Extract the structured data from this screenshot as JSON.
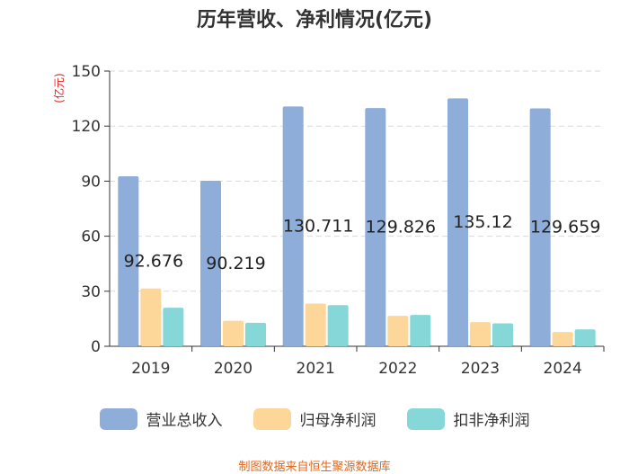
{
  "chart_data": {
    "type": "bar",
    "title": "历年营收、净利情况(亿元)",
    "ylabel": "(亿元)",
    "xlabel": "",
    "ylim": [
      0,
      150
    ],
    "yticks": [
      0,
      30,
      60,
      90,
      120,
      150
    ],
    "grid": true,
    "legend_position": "bottom",
    "categories": [
      "2019",
      "2020",
      "2021",
      "2022",
      "2023",
      "2024"
    ],
    "series": [
      {
        "name": "营业总收入",
        "color": "#8eadd9",
        "values": [
          92.676,
          90.219,
          130.711,
          129.826,
          135.12,
          129.659
        ],
        "labels": [
          "92.676",
          "90.219",
          "130.711",
          "129.826",
          "135.12",
          "129.659"
        ]
      },
      {
        "name": "归母净利润",
        "color": "#fdd79a",
        "values": [
          31.5,
          13.9,
          23.3,
          16.6,
          13.2,
          7.8
        ]
      },
      {
        "name": "扣非净利润",
        "color": "#86d7d7",
        "values": [
          21.0,
          12.8,
          22.4,
          17.1,
          12.5,
          9.2
        ]
      }
    ]
  },
  "source": "制图数据来自恒生聚源数据库"
}
